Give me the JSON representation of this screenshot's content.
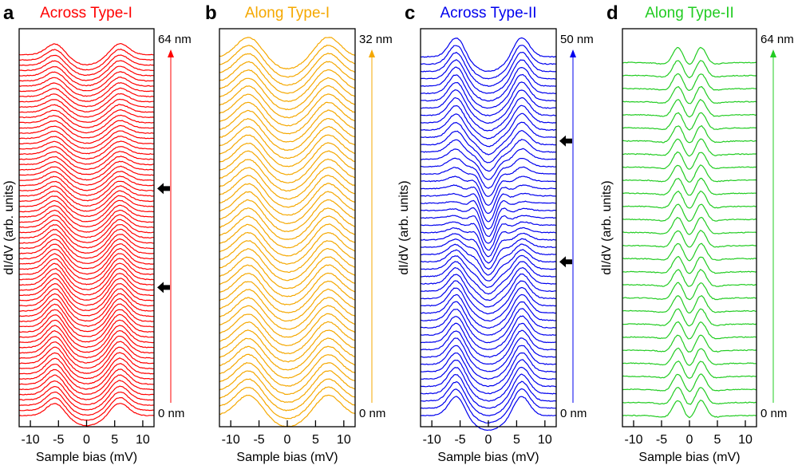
{
  "chart_data": [
    {
      "type": "line",
      "panel_letter": "a",
      "title": "Across Type-I",
      "color": "#ff0000",
      "xlabel": "Sample bias (mV)",
      "ylabel": "dI/dV (arb. units)",
      "xlim": [
        -12,
        12
      ],
      "xticks": [
        -10,
        -5,
        0,
        5,
        10
      ],
      "xtick_labels": [
        "-10",
        "-5",
        "0",
        "5",
        "10"
      ],
      "position_axis": {
        "start_label": "0 nm",
        "end_label": "64 nm",
        "start": 0,
        "end": 64,
        "unit": "nm"
      },
      "n_curves": 70,
      "spectrum_model": {
        "peaks_mV": [
          -5.5,
          5.8
        ],
        "gap_depth": 0.6,
        "peak_width_mV": 1.6
      },
      "arrows_marked_at_fraction": [
        0.62,
        0.35
      ]
    },
    {
      "type": "line",
      "panel_letter": "b",
      "title": "Along Type-I",
      "color": "#f5a800",
      "xlabel": "Sample bias (mV)",
      "ylabel": "",
      "xlim": [
        -12,
        12
      ],
      "xticks": [
        -10,
        -5,
        0,
        5,
        10
      ],
      "xtick_labels": [
        "-10",
        "-5",
        "0",
        "5",
        "10"
      ],
      "position_axis": {
        "start_label": "0 nm",
        "end_label": "32 nm",
        "start": 0,
        "end": 32,
        "unit": "nm"
      },
      "n_curves": 45,
      "spectrum_model": {
        "peaks_mV": [
          -6.8,
          7.2
        ],
        "gap_depth": 0.55,
        "peak_width_mV": 2.2
      },
      "arrows_marked_at_fraction": []
    },
    {
      "type": "line",
      "panel_letter": "c",
      "title": "Across Type-II",
      "color": "#0000ee",
      "xlabel": "Sample bias (mV)",
      "ylabel": "dI/dV (arb. units)",
      "xlim": [
        -12,
        12
      ],
      "xticks": [
        -10,
        -5,
        0,
        5,
        10
      ],
      "xtick_labels": [
        "-10",
        "-5",
        "0",
        "5",
        "10"
      ],
      "position_axis": {
        "start_label": "0 nm",
        "end_label": "50 nm",
        "start": 0,
        "end": 50,
        "unit": "nm"
      },
      "n_curves": 50,
      "spectrum_model": {
        "peaks_mV": [
          -5.6,
          5.8
        ],
        "inner_peaks_mV": [
          -2.0,
          2.0
        ],
        "gap_depth": 0.7,
        "peak_width_mV": 1.4
      },
      "arrows_marked_at_fraction": [
        0.75,
        0.42
      ]
    },
    {
      "type": "line",
      "panel_letter": "d",
      "title": "Along Type-II",
      "color": "#22cc22",
      "xlabel": "Sample bias (mV)",
      "ylabel": "dI/dV (arb. units)",
      "xlim": [
        -12,
        12
      ],
      "xticks": [
        -10,
        -5,
        0,
        5,
        10
      ],
      "xtick_labels": [
        "-10",
        "-5",
        "0",
        "5",
        "10"
      ],
      "position_axis": {
        "start_label": "0 nm",
        "end_label": "64 nm",
        "start": 0,
        "end": 64,
        "unit": "nm"
      },
      "n_curves": 28,
      "spectrum_model": {
        "peaks_mV": [
          -2.0,
          2.0
        ],
        "gap_depth": 0.6,
        "peak_width_mV": 1.0
      },
      "arrows_marked_at_fraction": []
    }
  ]
}
